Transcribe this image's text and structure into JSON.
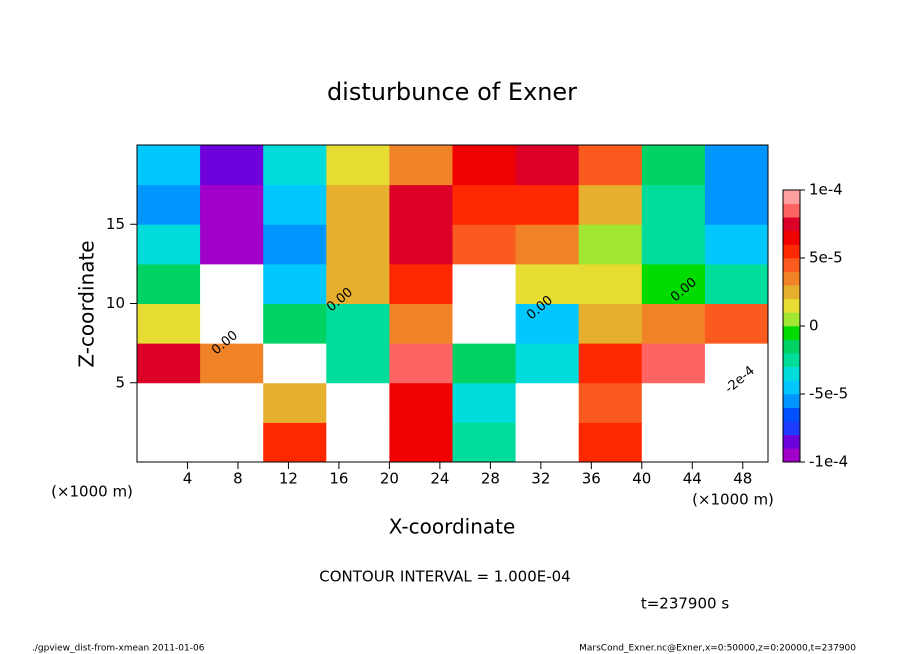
{
  "chart_data": {
    "type": "heatmap",
    "title": "disturbunce of Exner",
    "x_label": "X-coordinate",
    "y_label": "Z-coordinate",
    "x_unit_label": "(×1000 m)",
    "xlim": [
      0,
      50
    ],
    "ylim": [
      0,
      20
    ],
    "xticks": [
      4,
      8,
      12,
      16,
      20,
      24,
      28,
      32,
      36,
      40,
      44,
      48
    ],
    "yticks": [
      5,
      10,
      15
    ],
    "xbins": [
      0,
      5,
      10,
      15,
      20,
      25,
      30,
      35,
      40,
      45,
      50
    ],
    "ybins": [
      0,
      2.5,
      5,
      7.5,
      10,
      12.5,
      15,
      17.5,
      20
    ],
    "values": [
      [
        0.00015,
        0.00015,
        5e-05,
        -0.00015,
        6e-05,
        -3e-05,
        -0.00015,
        5e-05,
        -0.00015,
        -0.00015
      ],
      [
        0.00015,
        0.00015,
        2e-05,
        -0.00015,
        6e-05,
        -4e-05,
        -0.00015,
        4e-05,
        -0.00015,
        -0.00015
      ],
      [
        7e-05,
        3e-05,
        0.00015,
        -3e-05,
        8e-05,
        -2e-05,
        -4e-05,
        5e-05,
        8e-05,
        -0.00015
      ],
      [
        1e-05,
        0.00015,
        -2e-05,
        -3e-05,
        3e-05,
        0.00015,
        -5e-05,
        2e-05,
        3e-05,
        4e-05
      ],
      [
        -2e-05,
        0.00015,
        -5e-05,
        2e-05,
        5e-05,
        0.00015,
        1e-05,
        1e-05,
        -1e-05,
        -3e-05
      ],
      [
        -4e-05,
        -0.0001,
        -6e-05,
        2e-05,
        7e-05,
        4e-05,
        3e-05,
        0,
        -3e-05,
        -5e-05
      ],
      [
        -6e-05,
        -9e-05,
        -5e-05,
        2e-05,
        7e-05,
        5e-05,
        5e-05,
        2e-05,
        -3e-05,
        -6e-05
      ],
      [
        -5e-05,
        -8e-05,
        -4e-05,
        1e-05,
        3e-05,
        6e-05,
        7e-05,
        4e-05,
        -2e-05,
        -6e-05
      ]
    ],
    "clim": [
      -0.0001,
      0.0001
    ],
    "colors": [
      "#a000c8",
      "#6e00dc",
      "#1e3cff",
      "#0050ff",
      "#0096ff",
      "#00c8ff",
      "#00dcdc",
      "#00dc9a",
      "#00d264",
      "#00dc00",
      "#a0e632",
      "#e6dc32",
      "#e6af2d",
      "#f08228",
      "#fa5a1e",
      "#ff2800",
      "#f00000",
      "#dc0028",
      "#ff6464",
      "#ffa0a0"
    ],
    "colorbar_ticks": [
      {
        "value": 0.0001,
        "label": "1e-4"
      },
      {
        "value": 5e-05,
        "label": "5e-5"
      },
      0,
      {
        "value": -5e-05,
        "label": "-5e-5"
      },
      {
        "value": -0.0001,
        "label": "-1e-4"
      }
    ],
    "contour_labels": [
      "0.00",
      "0.00",
      "0.00",
      "0.00",
      "-2e-4"
    ],
    "contour_interval_note": "CONTOUR INTERVAL = 1.000E-04",
    "time_label": "t=237900 s",
    "footer_left": "./gpview_dist-from-xmean   2011-01-06",
    "footer_right": "MarsCond_Exner.nc@Exner,x=0:50000,z=0:20000,t=237900"
  }
}
